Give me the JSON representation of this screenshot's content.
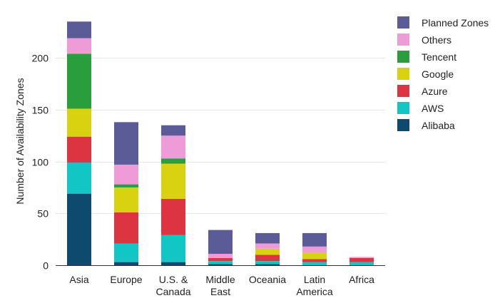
{
  "chart_data": {
    "type": "bar",
    "stacked": true,
    "ylabel": "Number of Availability Zones",
    "ylim": [
      0,
      240
    ],
    "yticks": [
      0,
      50,
      100,
      150,
      200
    ],
    "grid": true,
    "legend_position": "right",
    "categories": [
      [
        "Asia"
      ],
      [
        "Europe"
      ],
      [
        "U.S. &",
        "Canada"
      ],
      [
        "Middle",
        "East"
      ],
      [
        "Oceania"
      ],
      [
        "Latin",
        "America"
      ],
      [
        "Africa"
      ]
    ],
    "series": [
      {
        "name": "Alibaba",
        "color": "#0d4a6e",
        "values": [
          69,
          3,
          3,
          1,
          1,
          0,
          0
        ]
      },
      {
        "name": "AWS",
        "color": "#12c6c6",
        "values": [
          30,
          18,
          26,
          3,
          3,
          3,
          3
        ]
      },
      {
        "name": "Azure",
        "color": "#dc3440",
        "values": [
          25,
          30,
          35,
          3,
          6,
          3,
          4
        ]
      },
      {
        "name": "Google",
        "color": "#d8d211",
        "values": [
          27,
          24,
          34,
          0,
          6,
          6,
          0
        ]
      },
      {
        "name": "Tencent",
        "color": "#2a9e3c",
        "values": [
          53,
          3,
          5,
          0,
          0,
          0,
          0
        ]
      },
      {
        "name": "Others",
        "color": "#ee9bd8",
        "values": [
          15,
          19,
          22,
          4,
          5,
          6,
          1
        ]
      },
      {
        "name": "Planned Zones",
        "color": "#5b5b97",
        "values": [
          16,
          41,
          10,
          23,
          10,
          13,
          0
        ]
      }
    ]
  }
}
